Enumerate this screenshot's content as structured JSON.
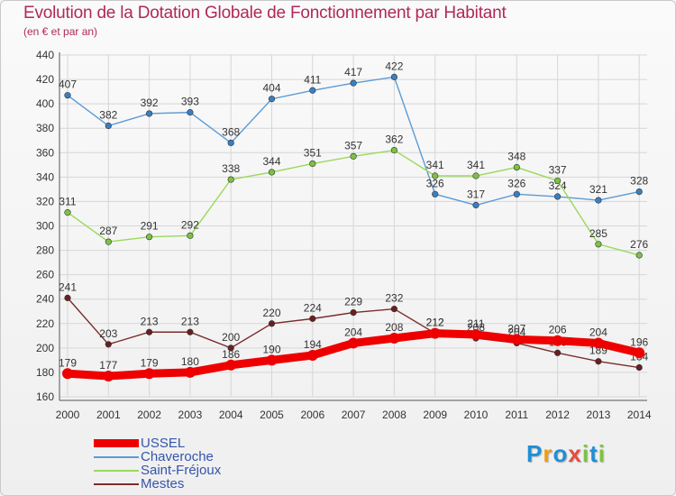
{
  "title": "Evolution de la Dotation Globale de Fonctionnement par Habitant",
  "subtitle": "(en € et par an)",
  "brand": {
    "letters": [
      {
        "ch": "P",
        "color": "#1f8fd6"
      },
      {
        "ch": "r",
        "color": "#f39c12"
      },
      {
        "ch": "o",
        "color": "#1f8fd6"
      },
      {
        "ch": "x",
        "color": "#e74c3c"
      },
      {
        "ch": "i",
        "color": "#7cc242"
      },
      {
        "ch": "t",
        "color": "#1f8fd6"
      },
      {
        "ch": "i",
        "color": "#7cc242"
      }
    ]
  },
  "chart_data": {
    "type": "line",
    "x": [
      2000,
      2001,
      2002,
      2003,
      2004,
      2005,
      2006,
      2007,
      2008,
      2009,
      2010,
      2011,
      2012,
      2013,
      2014
    ],
    "ylim": [
      160,
      440
    ],
    "yticks": [
      160,
      180,
      200,
      220,
      240,
      260,
      280,
      300,
      320,
      340,
      360,
      380,
      400,
      420,
      440
    ],
    "grid": true,
    "legend_position": "bottom-left",
    "series": [
      {
        "name": "Chaveroche",
        "color": "#5b9bd5",
        "dot": "#3a7fc1",
        "values": [
          407,
          382,
          392,
          393,
          368,
          404,
          411,
          417,
          422,
          326,
          317,
          326,
          324,
          321,
          328
        ]
      },
      {
        "name": "Saint-Fréjoux",
        "color": "#99d95c",
        "dot": "#7cc242",
        "values": [
          311,
          287,
          291,
          292,
          338,
          344,
          351,
          357,
          362,
          341,
          341,
          348,
          337,
          285,
          276
        ]
      },
      {
        "name": "Mestes",
        "color": "#7b2c2c",
        "dot": "#6a1f1f",
        "values": [
          241,
          203,
          213,
          213,
          200,
          220,
          224,
          229,
          232,
          212,
          208,
          204,
          196,
          189,
          184
        ],
        "labels": [
          "241",
          "203",
          "213",
          "213",
          "200",
          "220",
          "224",
          "229",
          "232",
          "212",
          "208",
          "204",
          "196",
          "189",
          "184"
        ]
      },
      {
        "name": "USSEL",
        "color": "#ee0000",
        "dot": "#ee0000",
        "thick": true,
        "values": [
          179,
          177,
          179,
          180,
          186,
          190,
          194,
          204,
          208,
          212,
          211,
          207,
          206,
          204,
          196
        ]
      }
    ]
  }
}
